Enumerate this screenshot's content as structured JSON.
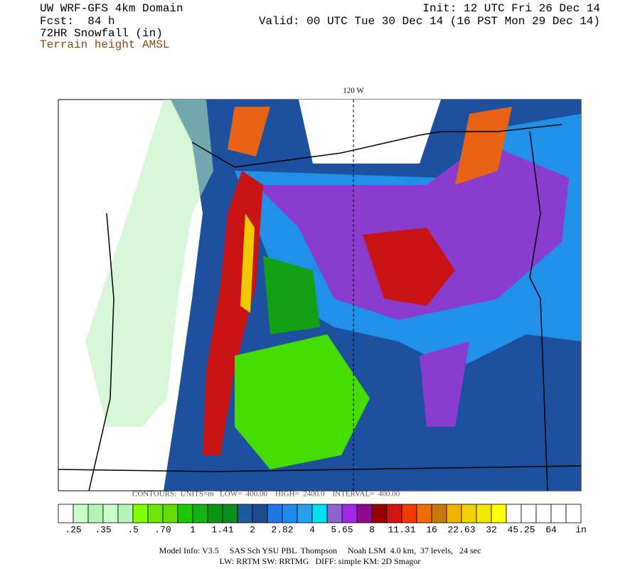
{
  "header": {
    "left": [
      "UW WRF-GFS 4km Domain",
      "Fcst:  84 h",
      "72HR Snowfall (in)",
      "Terrain height AMSL"
    ],
    "right": [
      "Init: 12 UTC Fri 26 Dec 14",
      "Valid: 00 UTC Tue 30 Dec 14 (16 PST Mon 29 Dec 14)"
    ]
  },
  "map": {
    "longitude_label": "120 W",
    "contours": "CONTOURS:  UNITS=m   LOW=  400.00    HIGH=  2400.0    INTERVAL=  400.00"
  },
  "colorbar": {
    "labels": [
      ".25",
      ".35",
      ".5",
      ".70",
      "1",
      "1.41",
      "2",
      "2.82",
      "4",
      "5.65",
      "8",
      "11.31",
      "16",
      "22.63",
      "32",
      "45.25",
      "64",
      "in"
    ],
    "colors": [
      "#ffffff",
      "#c8ffc8",
      "#b4f5b4",
      "#c8ffc8",
      "#b4f5b4",
      "#7fff00",
      "#6ee600",
      "#64dc00",
      "#1ec800",
      "#14b414",
      "#0a9614",
      "#0a8c1e",
      "#1e5aa0",
      "#1e4b8c",
      "#1e78e6",
      "#1e8cf0",
      "#28a0f0",
      "#00e1f0",
      "#8c64d2",
      "#a028e6",
      "#8c0a8c",
      "#960000",
      "#d21414",
      "#f03c00",
      "#f06e00",
      "#c8780a",
      "#f0b400",
      "#f0d200",
      "#f0e600",
      "#ffff00",
      "#ffffff",
      "#ffffff",
      "#ffffff",
      "#ffffff",
      "#ffffff"
    ]
  },
  "footer": [
    "Model Info: V3.5     SAS Sch YSU PBL  Thompson     Noah LSM  4.0 km,  37 levels,   24 sec",
    "LW: RRTM SW: RRTMG   DIFF: simple KM: 2D Smagor"
  ]
}
